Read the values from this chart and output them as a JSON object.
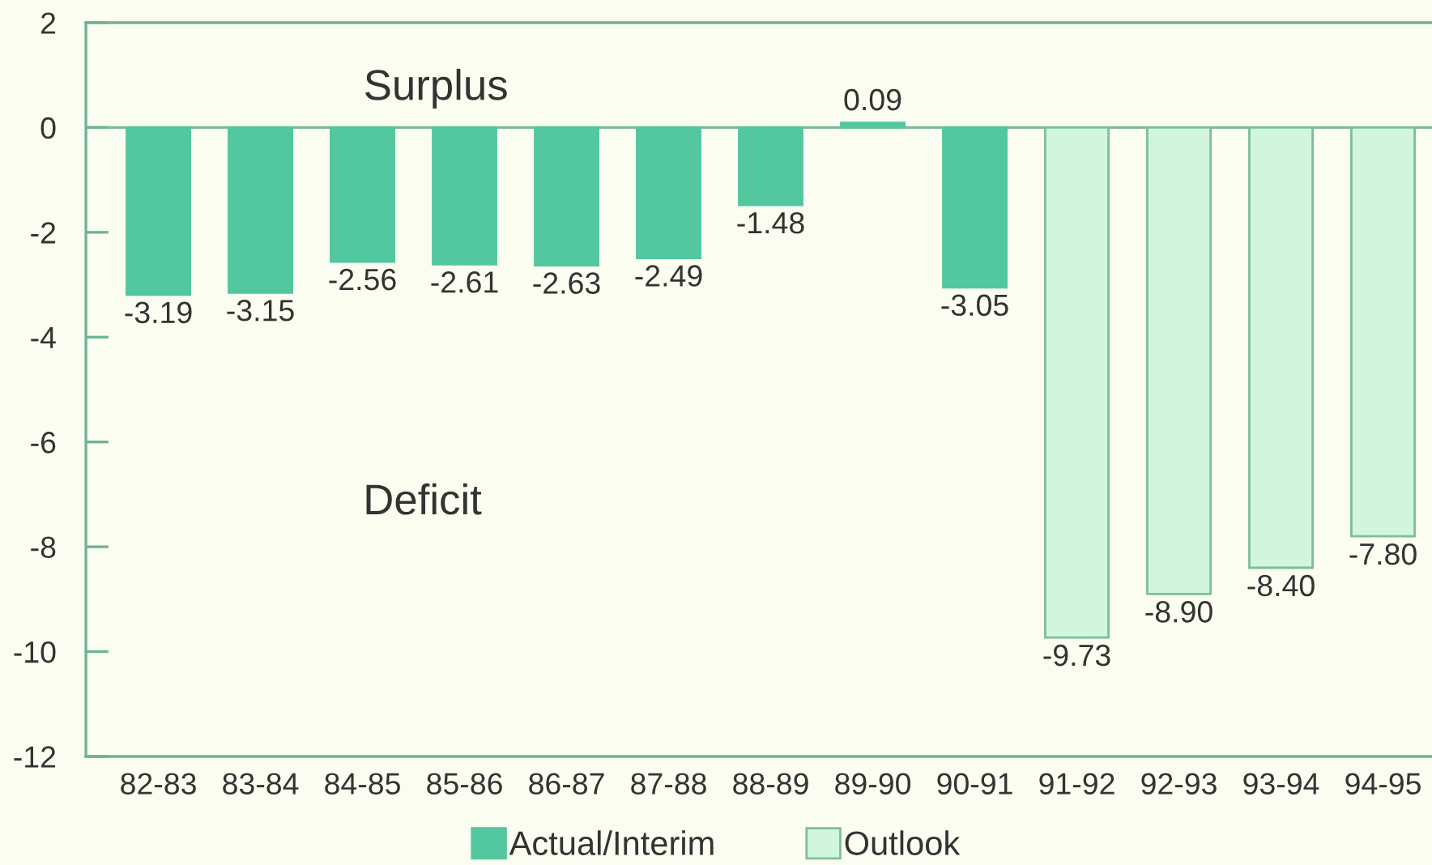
{
  "chart_data": {
    "type": "bar",
    "categories": [
      "82-83",
      "83-84",
      "84-85",
      "85-86",
      "86-87",
      "87-88",
      "88-89",
      "89-90",
      "90-91",
      "91-92",
      "92-93",
      "93-94",
      "94-95"
    ],
    "series": [
      {
        "name": "Actual/Interim",
        "color": "#52c7a0",
        "values": [
          -3.19,
          -3.15,
          -2.56,
          -2.61,
          -2.63,
          -2.49,
          -1.48,
          0.09,
          -3.05,
          null,
          null,
          null,
          null
        ],
        "value_labels": [
          "-3.19",
          "-3.15",
          "-2.56",
          "-2.61",
          "-2.63",
          "-2.49",
          "-1.48",
          "0.09",
          "-3.05",
          null,
          null,
          null,
          null
        ]
      },
      {
        "name": "Outlook",
        "color": "#d2f5df",
        "values": [
          null,
          null,
          null,
          null,
          null,
          null,
          null,
          null,
          null,
          -9.73,
          -8.9,
          -8.4,
          -7.8
        ],
        "value_labels": [
          null,
          null,
          null,
          null,
          null,
          null,
          null,
          null,
          null,
          "-9.73",
          "-8.90",
          "-8.40",
          "-7.80"
        ]
      }
    ],
    "ylim": [
      -12,
      2
    ],
    "yticks": [
      -12,
      -10,
      -8,
      -6,
      -4,
      -2,
      0,
      2
    ],
    "ref_lines": [
      {
        "axis": "y",
        "value": 0,
        "color": "#7fbaa3"
      }
    ],
    "annotations": [
      "Surplus",
      "Deficit"
    ],
    "legend": "bottom",
    "grid": false
  }
}
